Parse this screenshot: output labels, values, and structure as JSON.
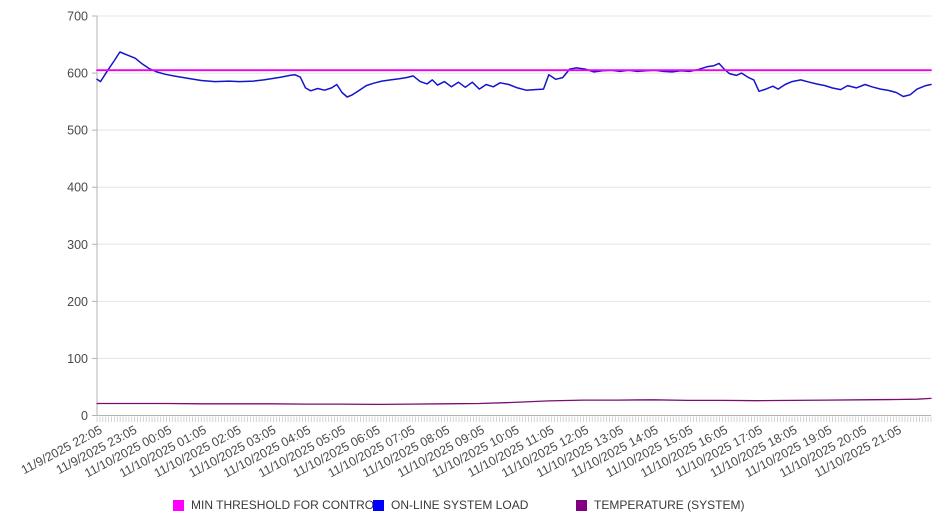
{
  "legend": {
    "items": [
      {
        "label": "MIN THRESHOLD FOR CONTROL",
        "color": "#ff00ff"
      },
      {
        "label": "ON-LINE SYSTEM LOAD",
        "color": "#0000ff"
      },
      {
        "label": "TEMPERATURE (SYSTEM)",
        "color": "#800080"
      }
    ]
  },
  "chart_data": {
    "type": "line",
    "title": "",
    "xlabel": "",
    "ylabel": "",
    "ylim": [
      0,
      700
    ],
    "y_ticks": [
      0,
      100,
      200,
      300,
      400,
      500,
      600,
      700
    ],
    "grid": "horizontal",
    "legend_position": "bottom",
    "x_range_hours": 24,
    "x_minor_tick_intervals": 288,
    "x_labels": [
      "11/9/2025 22:05",
      "11/9/2025 23:05",
      "11/10/2025 00:05",
      "11/10/2025 01:05",
      "11/10/2025 02:05",
      "11/10/2025 03:05",
      "11/10/2025 04:05",
      "11/10/2025 05:05",
      "11/10/2025 06:05",
      "11/10/2025 07:05",
      "11/10/2025 08:05",
      "11/10/2025 09:05",
      "11/10/2025 10:05",
      "11/10/2025 11:05",
      "11/10/2025 12:05",
      "11/10/2025 13:05",
      "11/10/2025 14:05",
      "11/10/2025 15:05",
      "11/10/2025 16:05",
      "11/10/2025 17:05",
      "11/10/2025 18:05",
      "11/10/2025 19:05",
      "11/10/2025 20:05",
      "11/10/2025 21:05"
    ],
    "series": [
      {
        "name": "TEMPERATURE (SYSTEM)",
        "color": "#7a0c74",
        "width": 1.3,
        "x": [
          0,
          1,
          2,
          3,
          4,
          5,
          6,
          7,
          8,
          9,
          10,
          11,
          12,
          13,
          14,
          15,
          16,
          17,
          18,
          19,
          20,
          21,
          22,
          23,
          23.6,
          24
        ],
        "values": [
          21,
          21,
          21,
          20.5,
          20.5,
          20.5,
          20,
          20,
          19.5,
          20,
          20.5,
          21,
          23,
          25.5,
          27,
          27,
          27.5,
          26.5,
          26.5,
          26,
          26.5,
          27,
          27.5,
          28,
          28.5,
          30
        ]
      },
      {
        "name": "ON-LINE SYSTEM LOAD",
        "color": "#1414cd",
        "width": 1.5,
        "x": [
          0,
          0.1,
          0.3,
          0.5,
          0.66,
          0.9,
          1.1,
          1.3,
          1.5,
          1.72,
          1.95,
          2.2,
          2.6,
          3.0,
          3.4,
          3.8,
          4.1,
          4.5,
          4.8,
          5.1,
          5.3,
          5.55,
          5.7,
          5.85,
          6.0,
          6.15,
          6.35,
          6.55,
          6.75,
          6.9,
          7.05,
          7.2,
          7.35,
          7.55,
          7.75,
          7.95,
          8.2,
          8.45,
          8.7,
          8.9,
          9.1,
          9.3,
          9.5,
          9.65,
          9.8,
          10.0,
          10.2,
          10.4,
          10.6,
          10.8,
          11.0,
          11.2,
          11.4,
          11.6,
          11.85,
          12.1,
          12.35,
          12.6,
          12.85,
          13.0,
          13.2,
          13.4,
          13.6,
          13.8,
          14.05,
          14.3,
          14.55,
          14.8,
          15.05,
          15.3,
          15.55,
          15.8,
          16.05,
          16.3,
          16.55,
          16.8,
          17.05,
          17.3,
          17.55,
          17.75,
          17.9,
          18.05,
          18.2,
          18.4,
          18.55,
          18.75,
          18.9,
          19.05,
          19.25,
          19.45,
          19.6,
          19.8,
          20.0,
          20.25,
          20.5,
          20.7,
          20.95,
          21.15,
          21.4,
          21.6,
          21.85,
          22.1,
          22.3,
          22.55,
          22.75,
          23.0,
          23.2,
          23.4,
          23.6,
          23.85,
          24.0
        ],
        "values": [
          589,
          585,
          604,
          622,
          637,
          631,
          626,
          616,
          608,
          602,
          598,
          595,
          591,
          587,
          585,
          586,
          585,
          586,
          588,
          591,
          593,
          596,
          597,
          593,
          574,
          569,
          573,
          570,
          574,
          580,
          566,
          558,
          562,
          570,
          578,
          582,
          586,
          588,
          590,
          592,
          595,
          585,
          581,
          588,
          579,
          585,
          576,
          584,
          575,
          584,
          572,
          580,
          576,
          583,
          580,
          574,
          570,
          571,
          572,
          597,
          589,
          592,
          607,
          609,
          607,
          602,
          604,
          605,
          603,
          605,
          603,
          604,
          605,
          603,
          602,
          604,
          603,
          606,
          611,
          613,
          617,
          607,
          599,
          596,
          600,
          592,
          588,
          568,
          572,
          577,
          572,
          580,
          585,
          588,
          584,
          581,
          578,
          574,
          571,
          578,
          574,
          580,
          576,
          572,
          570,
          566,
          559,
          562,
          572,
          578,
          580
        ]
      },
      {
        "name": "MIN THRESHOLD FOR CONTROL",
        "color": "#ee00ee",
        "width": 1.8,
        "x": [
          0,
          24
        ],
        "values": [
          605,
          605
        ]
      }
    ]
  }
}
